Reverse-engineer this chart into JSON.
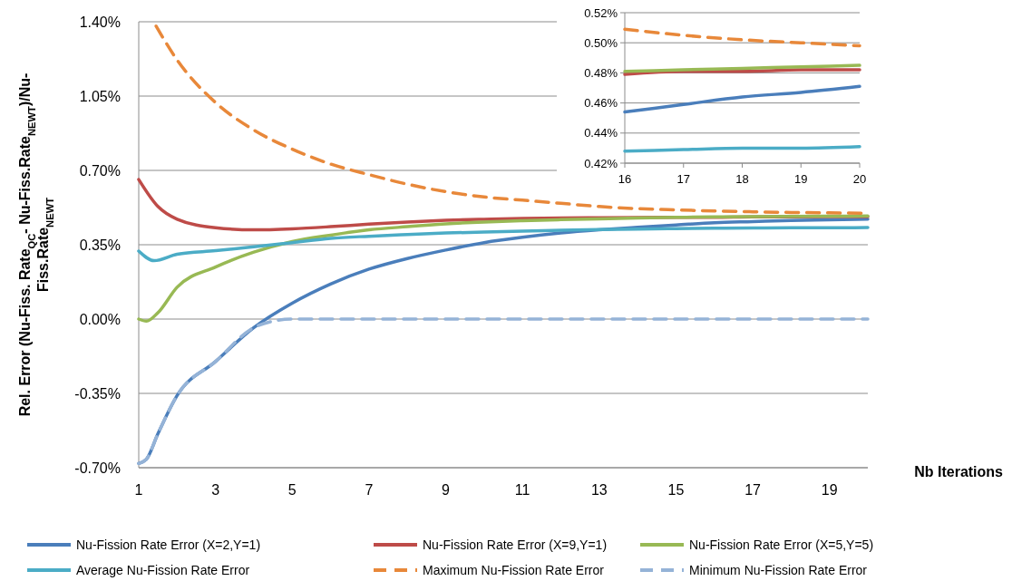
{
  "chart_data": [
    {
      "type": "line",
      "xlabel": "Nb Iterations",
      "ylabel": "Rel. Error (Nu-Fiss. Rate$_{QC}$- Nu-Fiss.Rate$_{NEWT}$)/Nu-Fiss.Rate$_{NEWT}$",
      "xlim": [
        1,
        20
      ],
      "xticks": [
        1,
        3,
        5,
        7,
        9,
        11,
        13,
        15,
        17,
        19
      ],
      "ylim": [
        -0.7,
        1.4
      ],
      "yticks": [
        {
          "value": -0.7,
          "label": "-0.70%"
        },
        {
          "value": -0.35,
          "label": "-0.35%"
        },
        {
          "value": 0,
          "label": "0.00%"
        },
        {
          "value": 0.35,
          "label": "0.35%"
        },
        {
          "value": 0.7,
          "label": "0.70%"
        },
        {
          "value": 1.05,
          "label": "1.05%"
        },
        {
          "value": 1.4,
          "label": "1.40%"
        }
      ],
      "grid": "y",
      "legend": "bottom",
      "marker": "none",
      "series": [
        {
          "name": "Nu-Fission Rate Error (X=2,Y=1)",
          "color": "#4a7ebb",
          "line_style": "solid",
          "x": [
            1,
            1.2,
            1.5,
            2,
            3,
            4,
            5,
            6,
            7,
            8,
            9,
            10,
            11,
            12,
            13,
            14,
            15,
            16,
            17,
            18,
            19,
            20
          ],
          "values": [
            -0.68,
            -0.66,
            -0.54,
            -0.36,
            -0.2,
            -0.04,
            0.075,
            0.165,
            0.235,
            0.285,
            0.325,
            0.36,
            0.385,
            0.405,
            0.42,
            0.432,
            0.443,
            0.454,
            0.459,
            0.464,
            0.467,
            0.471
          ]
        },
        {
          "name": "Nu-Fission Rate Error (X=9,Y=1)",
          "color": "#be4b48",
          "line_style": "solid",
          "x": [
            1,
            1.5,
            2,
            3,
            4,
            5,
            6,
            7,
            8,
            9,
            10,
            11,
            12,
            13,
            14,
            15,
            16,
            17,
            18,
            19,
            20
          ],
          "values": [
            0.657,
            0.53,
            0.47,
            0.43,
            0.42,
            0.425,
            0.435,
            0.447,
            0.457,
            0.465,
            0.47,
            0.474,
            0.476,
            0.477,
            0.478,
            0.479,
            0.479,
            0.481,
            0.481,
            0.482,
            0.482
          ]
        },
        {
          "name": "Nu-Fission Rate Error (X=5,Y=5)",
          "color": "#98b954",
          "line_style": "solid",
          "x": [
            1,
            1.2,
            1.5,
            2,
            3,
            4,
            5,
            6,
            7,
            8,
            9,
            10,
            11,
            12,
            13,
            14,
            15,
            16,
            17,
            18,
            19,
            20
          ],
          "values": [
            0,
            -0.01,
            0.03,
            0.15,
            0.245,
            0.315,
            0.365,
            0.395,
            0.42,
            0.435,
            0.448,
            0.457,
            0.463,
            0.468,
            0.472,
            0.476,
            0.479,
            0.481,
            0.482,
            0.483,
            0.484,
            0.485
          ]
        },
        {
          "name": "Average Nu-Fission Rate Error",
          "color": "#4bacc6",
          "line_style": "solid",
          "x": [
            1,
            1.4,
            2,
            3,
            4,
            5,
            6,
            7,
            8,
            9,
            10,
            11,
            12,
            13,
            14,
            15,
            16,
            17,
            18,
            19,
            20
          ],
          "values": [
            0.32,
            0.275,
            0.305,
            0.322,
            0.34,
            0.36,
            0.38,
            0.39,
            0.398,
            0.405,
            0.41,
            0.414,
            0.418,
            0.421,
            0.424,
            0.426,
            0.428,
            0.429,
            0.43,
            0.43,
            0.431
          ]
        },
        {
          "name": "Maximum Nu-Fission Rate Error",
          "color": "#e8883a",
          "line_style": "dashed",
          "x": [
            1.45,
            2,
            3,
            4,
            5,
            6,
            7,
            8,
            9,
            10,
            11,
            12,
            13,
            14,
            15,
            16,
            17,
            18,
            19,
            20
          ],
          "values": [
            1.38,
            1.22,
            1.02,
            0.89,
            0.8,
            0.73,
            0.68,
            0.635,
            0.6,
            0.575,
            0.56,
            0.545,
            0.53,
            0.52,
            0.514,
            0.509,
            0.505,
            0.502,
            0.5,
            0.498
          ]
        },
        {
          "name": "Minimum Nu-Fission Rate Error",
          "color": "#95b3d7",
          "line_style": "dashed",
          "x": [
            1,
            1.2,
            1.5,
            2,
            3,
            4,
            4.5,
            5,
            6,
            7,
            8,
            9,
            10,
            11,
            12,
            13,
            14,
            15,
            16,
            17,
            18,
            19,
            20
          ],
          "values": [
            -0.68,
            -0.66,
            -0.54,
            -0.36,
            -0.2,
            -0.04,
            -0.01,
            0,
            0,
            0,
            0,
            0,
            0,
            0,
            0,
            0,
            0,
            0,
            0,
            0,
            0,
            0,
            0
          ]
        }
      ]
    },
    {
      "type": "line",
      "xlim": [
        16,
        20
      ],
      "xticks": [
        16,
        17,
        18,
        19,
        20
      ],
      "ylim": [
        0.42,
        0.52
      ],
      "yticks": [
        {
          "value": 0.42,
          "label": "0.42%"
        },
        {
          "value": 0.44,
          "label": "0.44%"
        },
        {
          "value": 0.46,
          "label": "0.46%"
        },
        {
          "value": 0.48,
          "label": "0.48%"
        },
        {
          "value": 0.5,
          "label": "0.50%"
        },
        {
          "value": 0.52,
          "label": "0.52%"
        }
      ],
      "grid": "y",
      "marker": "none",
      "series": [
        {
          "color": "#4a7ebb",
          "line_style": "solid",
          "x": [
            16,
            17,
            18,
            19,
            20
          ],
          "values": [
            0.454,
            0.459,
            0.464,
            0.467,
            0.471
          ]
        },
        {
          "color": "#be4b48",
          "line_style": "solid",
          "x": [
            16,
            17,
            18,
            19,
            20
          ],
          "values": [
            0.479,
            0.481,
            0.481,
            0.482,
            0.482
          ]
        },
        {
          "color": "#98b954",
          "line_style": "solid",
          "x": [
            16,
            17,
            18,
            19,
            20
          ],
          "values": [
            0.481,
            0.482,
            0.483,
            0.484,
            0.485
          ]
        },
        {
          "color": "#4bacc6",
          "line_style": "solid",
          "x": [
            16,
            17,
            18,
            19,
            20
          ],
          "values": [
            0.428,
            0.429,
            0.43,
            0.43,
            0.431
          ]
        },
        {
          "color": "#e8883a",
          "line_style": "dashed",
          "x": [
            16,
            17,
            18,
            19,
            20
          ],
          "values": [
            0.509,
            0.505,
            0.502,
            0.5,
            0.498
          ]
        }
      ]
    }
  ]
}
